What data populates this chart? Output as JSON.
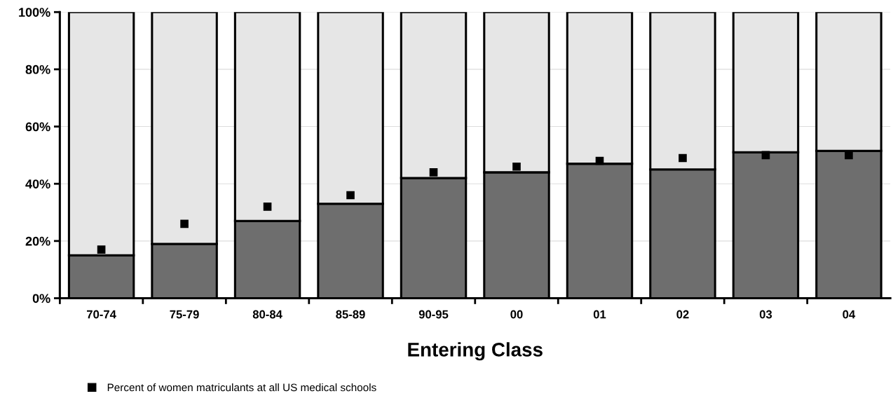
{
  "chart_data": {
    "type": "bar",
    "stacked": true,
    "xlabel": "Entering Class",
    "categories": [
      "70-74",
      "75-79",
      "80-84",
      "85-89",
      "90-95",
      "00",
      "01",
      "02",
      "03",
      "04"
    ],
    "series": [
      {
        "color": "#6e6e6e",
        "values": [
          15,
          19,
          27,
          33,
          42,
          44,
          47,
          45,
          51,
          51.5
        ]
      },
      {
        "color": "#e6e6e6",
        "values": [
          85,
          81,
          73,
          67,
          58,
          56,
          53,
          55,
          49,
          48.5
        ]
      },
      {
        "type": "scatter",
        "name": "Percent of women matriculants at all US medical schools",
        "color": "#000000",
        "marker": "square",
        "values": [
          17,
          26,
          32,
          36,
          44,
          46,
          48,
          49,
          50,
          50
        ]
      }
    ],
    "ylim": [
      0,
      100
    ],
    "yticks": [
      {
        "value": 0,
        "label": "0%"
      },
      {
        "value": 20,
        "label": "20%"
      },
      {
        "value": 40,
        "label": "40%"
      },
      {
        "value": 60,
        "label": "60%"
      },
      {
        "value": 80,
        "label": "80%"
      },
      {
        "value": 100,
        "label": "100%"
      }
    ],
    "grid": "y",
    "legend": "bottom left"
  }
}
